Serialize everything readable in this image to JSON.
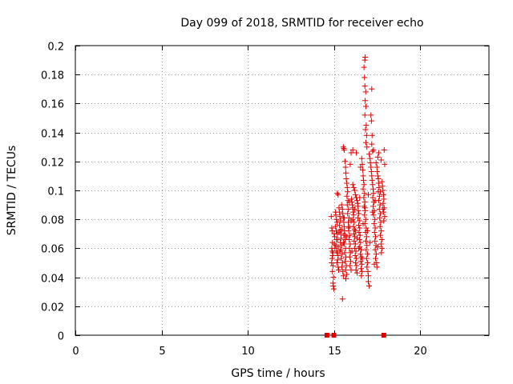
{
  "chart_data": {
    "type": "scatter",
    "title": "Day 099 of 2018, SRMTID for receiver echo",
    "xlabel": "GPS time / hours",
    "ylabel": "SRMTID / TECUs",
    "xlim": [
      0,
      24
    ],
    "ylim": [
      0,
      0.2
    ],
    "x_ticks": [
      0,
      5,
      10,
      15,
      20
    ],
    "x_tick_labels": [
      "0",
      "5",
      "10",
      "15",
      "20"
    ],
    "y_ticks": [
      0,
      0.02,
      0.04,
      0.06,
      0.08,
      0.1,
      0.12,
      0.14,
      0.16,
      0.18,
      0.2
    ],
    "y_tick_labels": [
      "0",
      "0.02",
      "0.04",
      "0.06",
      "0.08",
      "0.1",
      "0.12",
      "0.14",
      "0.16",
      "0.18",
      "0.2"
    ],
    "grid": true,
    "marker": "+",
    "marker_color": "#dd0000",
    "zero_markers_x": [
      14.6,
      15.0,
      17.9
    ],
    "points": [
      [
        14.85,
        0.082
      ],
      [
        14.88,
        0.074
      ],
      [
        14.9,
        0.072
      ],
      [
        14.92,
        0.064
      ],
      [
        14.88,
        0.06
      ],
      [
        14.9,
        0.058
      ],
      [
        14.95,
        0.057
      ],
      [
        14.93,
        0.055
      ],
      [
        14.9,
        0.053
      ],
      [
        14.87,
        0.05
      ],
      [
        14.95,
        0.048
      ],
      [
        14.92,
        0.044
      ],
      [
        14.98,
        0.04
      ],
      [
        14.95,
        0.036
      ],
      [
        14.97,
        0.034
      ],
      [
        15.0,
        0.032
      ],
      [
        15.02,
        0.07
      ],
      [
        15.05,
        0.068
      ],
      [
        15.03,
        0.063
      ],
      [
        15.06,
        0.06
      ],
      [
        15.1,
        0.085
      ],
      [
        15.12,
        0.083
      ],
      [
        15.15,
        0.08
      ],
      [
        15.18,
        0.078
      ],
      [
        15.1,
        0.075
      ],
      [
        15.14,
        0.072
      ],
      [
        15.2,
        0.07
      ],
      [
        15.22,
        0.066
      ],
      [
        15.12,
        0.062
      ],
      [
        15.16,
        0.058
      ],
      [
        15.2,
        0.057
      ],
      [
        15.25,
        0.055
      ],
      [
        15.22,
        0.052
      ],
      [
        15.18,
        0.05
      ],
      [
        15.25,
        0.047
      ],
      [
        15.28,
        0.045
      ],
      [
        15.2,
        0.098
      ],
      [
        15.25,
        0.097
      ],
      [
        15.3,
        0.088
      ],
      [
        15.32,
        0.085
      ],
      [
        15.35,
        0.082
      ],
      [
        15.38,
        0.079
      ],
      [
        15.33,
        0.076
      ],
      [
        15.36,
        0.073
      ],
      [
        15.4,
        0.07
      ],
      [
        15.42,
        0.067
      ],
      [
        15.38,
        0.064
      ],
      [
        15.45,
        0.062
      ],
      [
        15.4,
        0.059
      ],
      [
        15.48,
        0.056
      ],
      [
        15.43,
        0.053
      ],
      [
        15.5,
        0.05
      ],
      [
        15.46,
        0.047
      ],
      [
        15.52,
        0.044
      ],
      [
        15.55,
        0.041
      ],
      [
        15.45,
        0.09
      ],
      [
        15.5,
        0.087
      ],
      [
        15.52,
        0.084
      ],
      [
        15.55,
        0.081
      ],
      [
        15.58,
        0.078
      ],
      [
        15.6,
        0.075
      ],
      [
        15.62,
        0.072
      ],
      [
        15.58,
        0.069
      ],
      [
        15.65,
        0.066
      ],
      [
        15.6,
        0.063
      ],
      [
        15.68,
        0.06
      ],
      [
        15.63,
        0.057
      ],
      [
        15.7,
        0.054
      ],
      [
        15.66,
        0.051
      ],
      [
        15.72,
        0.048
      ],
      [
        15.68,
        0.045
      ],
      [
        15.75,
        0.042
      ],
      [
        15.7,
        0.039
      ],
      [
        15.5,
        0.025
      ],
      [
        15.55,
        0.13
      ],
      [
        15.58,
        0.129
      ],
      [
        15.6,
        0.128
      ],
      [
        15.65,
        0.12
      ],
      [
        15.68,
        0.116
      ],
      [
        15.7,
        0.112
      ],
      [
        15.72,
        0.108
      ],
      [
        15.75,
        0.105
      ],
      [
        15.78,
        0.102
      ],
      [
        15.8,
        0.099
      ],
      [
        15.76,
        0.096
      ],
      [
        15.82,
        0.093
      ],
      [
        15.78,
        0.09
      ],
      [
        15.85,
        0.087
      ],
      [
        15.8,
        0.084
      ],
      [
        15.88,
        0.081
      ],
      [
        15.84,
        0.078
      ],
      [
        15.9,
        0.075
      ],
      [
        15.86,
        0.072
      ],
      [
        15.92,
        0.069
      ],
      [
        15.88,
        0.066
      ],
      [
        15.95,
        0.063
      ],
      [
        15.9,
        0.06
      ],
      [
        15.96,
        0.057
      ],
      [
        15.92,
        0.054
      ],
      [
        15.98,
        0.051
      ],
      [
        15.94,
        0.048
      ],
      [
        16.0,
        0.045
      ],
      [
        16.02,
        0.094
      ],
      [
        16.05,
        0.092
      ],
      [
        16.08,
        0.09
      ],
      [
        16.1,
        0.088
      ],
      [
        16.12,
        0.085
      ],
      [
        16.15,
        0.083
      ],
      [
        16.1,
        0.08
      ],
      [
        16.18,
        0.078
      ],
      [
        16.14,
        0.075
      ],
      [
        16.2,
        0.073
      ],
      [
        16.16,
        0.07
      ],
      [
        16.22,
        0.068
      ],
      [
        16.18,
        0.065
      ],
      [
        16.25,
        0.063
      ],
      [
        16.2,
        0.06
      ],
      [
        16.28,
        0.058
      ],
      [
        16.24,
        0.055
      ],
      [
        16.3,
        0.053
      ],
      [
        16.26,
        0.05
      ],
      [
        16.32,
        0.048
      ],
      [
        16.28,
        0.045
      ],
      [
        16.35,
        0.043
      ],
      [
        16.1,
        0.104
      ],
      [
        16.15,
        0.102
      ],
      [
        16.2,
        0.1
      ],
      [
        16.25,
        0.097
      ],
      [
        16.3,
        0.095
      ],
      [
        16.35,
        0.093
      ],
      [
        16.38,
        0.091
      ],
      [
        16.4,
        0.089
      ],
      [
        16.42,
        0.086
      ],
      [
        16.45,
        0.084
      ],
      [
        16.4,
        0.081
      ],
      [
        16.48,
        0.079
      ],
      [
        16.44,
        0.076
      ],
      [
        16.5,
        0.074
      ],
      [
        16.46,
        0.071
      ],
      [
        16.52,
        0.069
      ],
      [
        16.48,
        0.066
      ],
      [
        16.55,
        0.064
      ],
      [
        16.5,
        0.061
      ],
      [
        16.58,
        0.059
      ],
      [
        16.54,
        0.056
      ],
      [
        16.6,
        0.054
      ],
      [
        16.56,
        0.051
      ],
      [
        16.62,
        0.049
      ],
      [
        16.58,
        0.046
      ],
      [
        16.64,
        0.044
      ],
      [
        16.6,
        0.041
      ],
      [
        16.62,
        0.122
      ],
      [
        16.65,
        0.118
      ],
      [
        16.68,
        0.114
      ],
      [
        16.7,
        0.11
      ],
      [
        16.72,
        0.107
      ],
      [
        16.75,
        0.104
      ],
      [
        16.7,
        0.101
      ],
      [
        16.78,
        0.098
      ],
      [
        16.74,
        0.095
      ],
      [
        16.8,
        0.092
      ],
      [
        16.76,
        0.089
      ],
      [
        16.82,
        0.086
      ],
      [
        16.78,
        0.083
      ],
      [
        16.85,
        0.08
      ],
      [
        16.8,
        0.077
      ],
      [
        16.88,
        0.074
      ],
      [
        16.84,
        0.071
      ],
      [
        16.9,
        0.068
      ],
      [
        16.86,
        0.065
      ],
      [
        16.92,
        0.062
      ],
      [
        16.88,
        0.059
      ],
      [
        16.95,
        0.056
      ],
      [
        16.9,
        0.053
      ],
      [
        16.96,
        0.05
      ],
      [
        16.92,
        0.047
      ],
      [
        16.98,
        0.044
      ],
      [
        17.0,
        0.041
      ],
      [
        17.0,
        0.037
      ],
      [
        17.05,
        0.034
      ],
      [
        16.75,
        0.185
      ],
      [
        16.8,
        0.19
      ],
      [
        16.82,
        0.192
      ],
      [
        16.78,
        0.178
      ],
      [
        16.8,
        0.172
      ],
      [
        16.85,
        0.168
      ],
      [
        16.82,
        0.162
      ],
      [
        16.86,
        0.158
      ],
      [
        16.8,
        0.152
      ],
      [
        16.88,
        0.145
      ],
      [
        16.84,
        0.142
      ],
      [
        16.9,
        0.138
      ],
      [
        16.86,
        0.133
      ],
      [
        16.92,
        0.13
      ],
      [
        17.2,
        0.17
      ],
      [
        17.15,
        0.152
      ],
      [
        17.18,
        0.148
      ],
      [
        17.22,
        0.138
      ],
      [
        17.2,
        0.132
      ],
      [
        17.25,
        0.127
      ],
      [
        17.3,
        0.128
      ],
      [
        17.05,
        0.125
      ],
      [
        17.1,
        0.122
      ],
      [
        17.12,
        0.119
      ],
      [
        17.15,
        0.116
      ],
      [
        17.18,
        0.113
      ],
      [
        17.2,
        0.11
      ],
      [
        17.22,
        0.107
      ],
      [
        17.25,
        0.104
      ],
      [
        17.28,
        0.101
      ],
      [
        17.3,
        0.098
      ],
      [
        17.26,
        0.095
      ],
      [
        17.32,
        0.092
      ],
      [
        17.28,
        0.089
      ],
      [
        17.35,
        0.086
      ],
      [
        17.3,
        0.083
      ],
      [
        17.38,
        0.08
      ],
      [
        17.34,
        0.077
      ],
      [
        17.4,
        0.074
      ],
      [
        17.36,
        0.071
      ],
      [
        17.42,
        0.068
      ],
      [
        17.38,
        0.065
      ],
      [
        17.45,
        0.062
      ],
      [
        17.4,
        0.059
      ],
      [
        17.46,
        0.056
      ],
      [
        17.42,
        0.053
      ],
      [
        17.48,
        0.05
      ],
      [
        17.5,
        0.047
      ],
      [
        17.45,
        0.119
      ],
      [
        17.5,
        0.116
      ],
      [
        17.52,
        0.113
      ],
      [
        17.55,
        0.11
      ],
      [
        17.58,
        0.108
      ],
      [
        17.6,
        0.105
      ],
      [
        17.62,
        0.102
      ],
      [
        17.58,
        0.099
      ],
      [
        17.65,
        0.096
      ],
      [
        17.6,
        0.093
      ],
      [
        17.68,
        0.09
      ],
      [
        17.64,
        0.087
      ],
      [
        17.7,
        0.084
      ],
      [
        17.66,
        0.081
      ],
      [
        17.72,
        0.078
      ],
      [
        17.68,
        0.075
      ],
      [
        17.75,
        0.072
      ],
      [
        17.7,
        0.069
      ],
      [
        17.78,
        0.066
      ],
      [
        17.74,
        0.063
      ],
      [
        17.8,
        0.06
      ],
      [
        17.76,
        0.057
      ],
      [
        17.8,
        0.106
      ],
      [
        17.82,
        0.103
      ],
      [
        17.85,
        0.1
      ],
      [
        17.88,
        0.097
      ],
      [
        17.9,
        0.094
      ],
      [
        17.86,
        0.091
      ],
      [
        17.92,
        0.088
      ],
      [
        17.88,
        0.085
      ],
      [
        17.95,
        0.082
      ],
      [
        17.9,
        0.079
      ],
      [
        15.15,
        0.066
      ],
      [
        15.3,
        0.071
      ],
      [
        15.45,
        0.073
      ],
      [
        15.6,
        0.081
      ],
      [
        15.75,
        0.068
      ],
      [
        15.9,
        0.092
      ],
      [
        16.05,
        0.058
      ],
      [
        16.2,
        0.087
      ],
      [
        16.35,
        0.067
      ],
      [
        16.5,
        0.095
      ],
      [
        16.65,
        0.053
      ],
      [
        16.8,
        0.088
      ],
      [
        16.95,
        0.072
      ],
      [
        17.1,
        0.064
      ],
      [
        17.25,
        0.085
      ],
      [
        17.4,
        0.093
      ],
      [
        17.55,
        0.061
      ],
      [
        17.7,
        0.099
      ],
      [
        17.85,
        0.087
      ],
      [
        17.0,
        0.097
      ],
      [
        15.25,
        0.061
      ],
      [
        15.35,
        0.058
      ],
      [
        15.55,
        0.064
      ],
      [
        15.65,
        0.069
      ],
      [
        15.85,
        0.074
      ],
      [
        16.0,
        0.079
      ],
      [
        16.25,
        0.072
      ],
      [
        16.45,
        0.06
      ],
      [
        16.7,
        0.077
      ],
      [
        17.35,
        0.049
      ],
      [
        16.1,
        0.128
      ],
      [
        16.0,
        0.126
      ],
      [
        15.95,
        0.118
      ],
      [
        16.3,
        0.126
      ],
      [
        16.55,
        0.116
      ],
      [
        17.6,
        0.126
      ],
      [
        17.55,
        0.123
      ],
      [
        17.75,
        0.121
      ],
      [
        17.95,
        0.118
      ],
      [
        17.92,
        0.128
      ]
    ]
  }
}
